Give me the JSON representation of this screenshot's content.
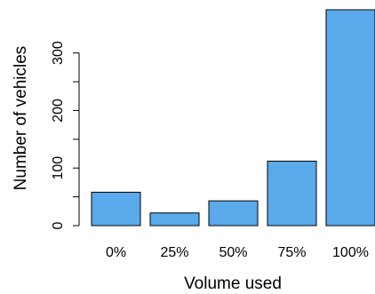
{
  "chart_data": {
    "type": "bar",
    "title": "",
    "xlabel": "Volume used",
    "ylabel": "Number of vehicles",
    "categories": [
      "0%",
      "25%",
      "50%",
      "75%",
      "100%"
    ],
    "values": [
      58,
      22,
      43,
      112,
      375
    ],
    "ylim": [
      0,
      375
    ],
    "yticks": [
      0,
      100,
      200,
      300
    ],
    "grid": false,
    "bar_color": "#5aaaeb",
    "bar_edge_color": "#000000"
  }
}
